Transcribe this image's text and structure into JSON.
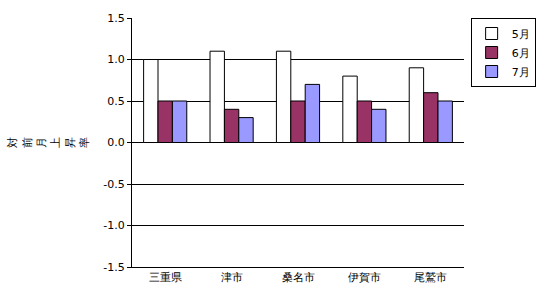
{
  "chart_data": {
    "type": "bar",
    "y_label": "対前月上昇率",
    "categories": [
      "三重県",
      "津市",
      "桑名市",
      "伊賀市",
      "尾鷲市"
    ],
    "series": [
      {
        "name": "5月",
        "color": "#ffffff",
        "values": [
          1.0,
          1.1,
          1.1,
          0.8,
          0.9
        ]
      },
      {
        "name": "6月",
        "color": "#993366",
        "values": [
          0.5,
          0.4,
          0.5,
          0.5,
          0.6
        ]
      },
      {
        "name": "7月",
        "color": "#9999ff",
        "values": [
          0.5,
          0.3,
          0.7,
          0.4,
          0.5
        ]
      }
    ],
    "ylim": [
      -1.5,
      1.5
    ],
    "yticks": [
      -1.5,
      {
        "value": -1.0,
        "label": "-1.0"
      },
      -0.5,
      {
        "value": 0,
        "label": "0.0"
      },
      0.5,
      {
        "value": 1.0,
        "label": "1.0"
      },
      1.5
    ],
    "grid": true,
    "legend": "top-right"
  }
}
